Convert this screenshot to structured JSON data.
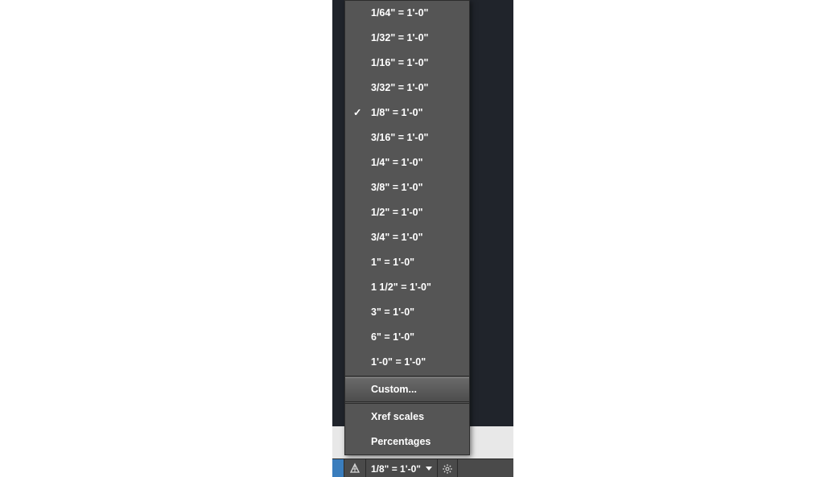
{
  "colors": {
    "menu_bg": "#555555",
    "menu_text": "#ffffff",
    "menu_border": "#2d2d2d",
    "hover_top": "#6a6a6a",
    "hover_bottom": "#4d4d4d",
    "backdrop": "#20242b",
    "statusbar_bg": "#4a4a4a",
    "accent_blue": "#3a7dbd"
  },
  "scale_menu": {
    "items": [
      {
        "label": "1/64\" = 1'-0\"",
        "checked": false
      },
      {
        "label": "1/32\" = 1'-0\"",
        "checked": false
      },
      {
        "label": "1/16\" = 1'-0\"",
        "checked": false
      },
      {
        "label": "3/32\" = 1'-0\"",
        "checked": false
      },
      {
        "label": "1/8\" = 1'-0\"",
        "checked": true
      },
      {
        "label": "3/16\" = 1'-0\"",
        "checked": false
      },
      {
        "label": "1/4\" = 1'-0\"",
        "checked": false
      },
      {
        "label": "3/8\" = 1'-0\"",
        "checked": false
      },
      {
        "label": "1/2\" = 1'-0\"",
        "checked": false
      },
      {
        "label": "3/4\" = 1'-0\"",
        "checked": false
      },
      {
        "label": "1\" = 1'-0\"",
        "checked": false
      },
      {
        "label": "1 1/2\" = 1'-0\"",
        "checked": false
      },
      {
        "label": "3\" = 1'-0\"",
        "checked": false
      },
      {
        "label": "6\" = 1'-0\"",
        "checked": false
      },
      {
        "label": "1'-0\" = 1'-0\"",
        "checked": false
      }
    ],
    "custom_label": "Custom...",
    "custom_hovered": true,
    "xref_label": "Xref scales",
    "percentages_label": "Percentages"
  },
  "statusbar": {
    "current_scale": "1/8\" = 1'-0\""
  }
}
